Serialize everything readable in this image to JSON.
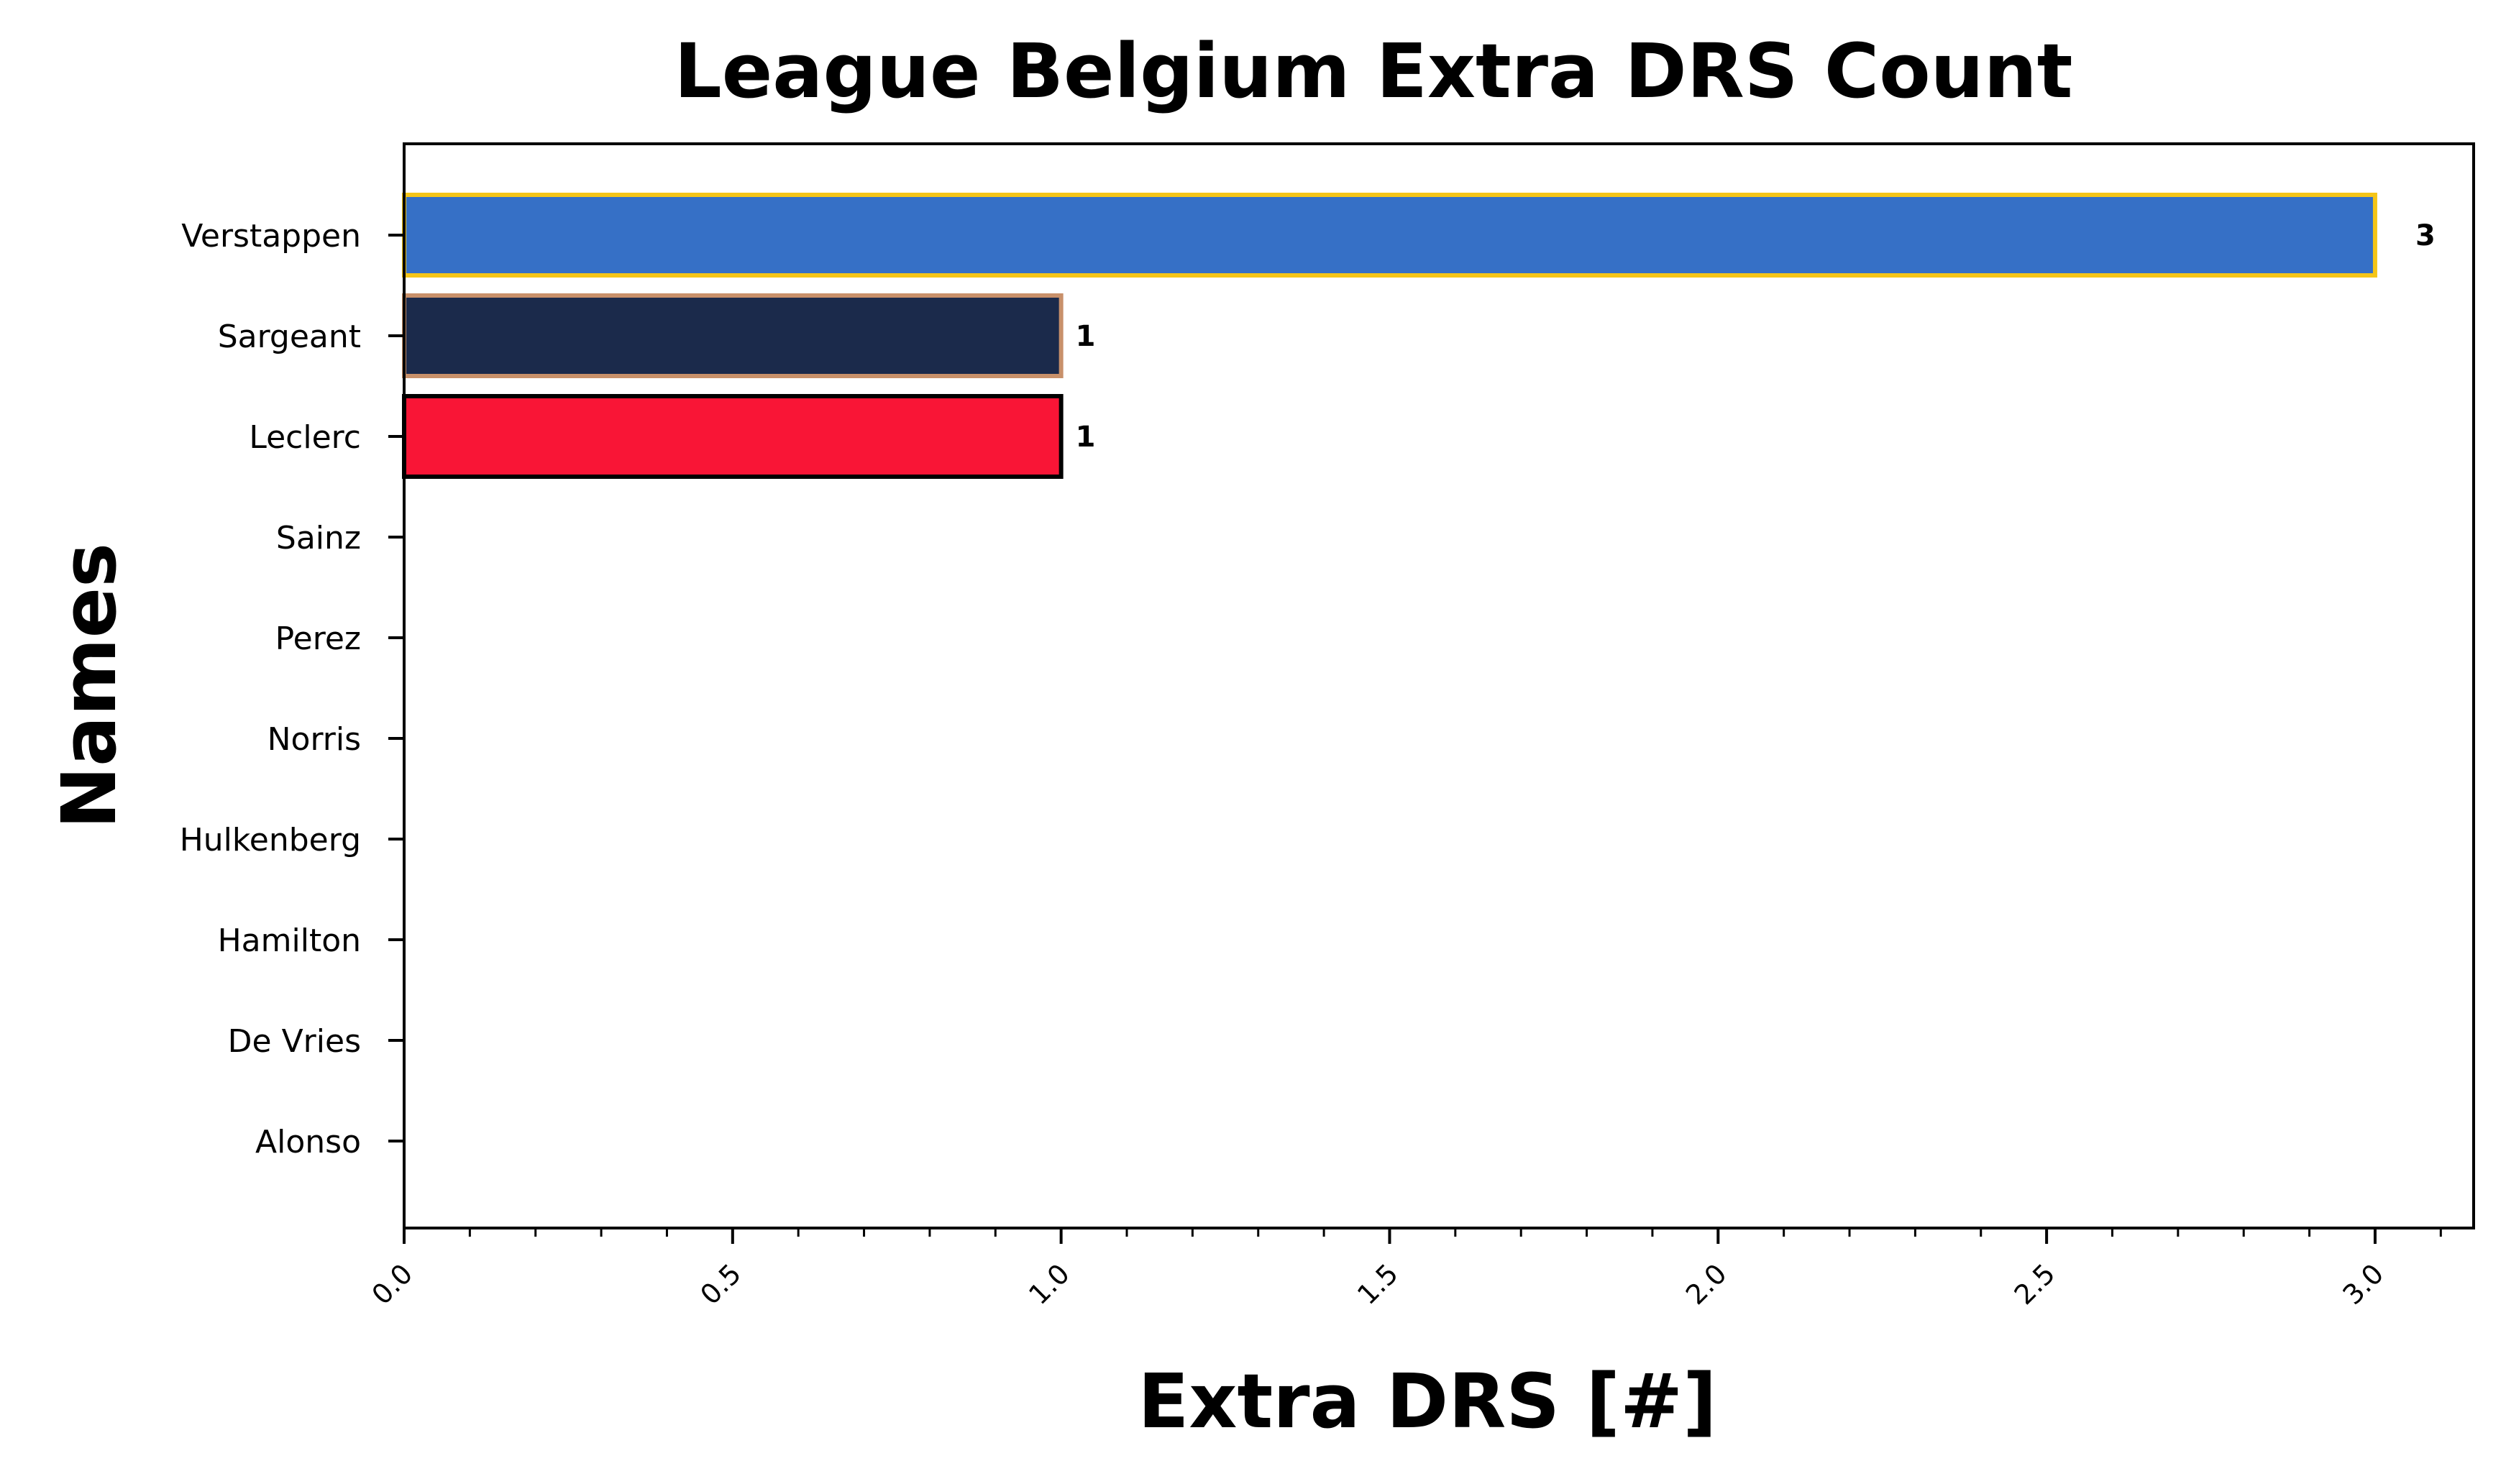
{
  "chart_data": {
    "type": "bar",
    "orientation": "horizontal",
    "title": "League Belgium Extra DRS Count",
    "xlabel": "Extra DRS [#]",
    "ylabel": "Names",
    "xlim": [
      0,
      3.15
    ],
    "xticks": [
      "0.0",
      "0.5",
      "1.0",
      "1.5",
      "2.0",
      "2.5",
      "3.0"
    ],
    "grid": false,
    "categories": [
      "Verstappen",
      "Sargeant",
      "Leclerc",
      "Sainz",
      "Perez",
      "Norris",
      "Hulkenberg",
      "Hamilton",
      "De Vries",
      "Alonso"
    ],
    "values": [
      3,
      1,
      1,
      0,
      0,
      0,
      0,
      0,
      0,
      0
    ],
    "data_labels": [
      "3",
      "1",
      "1",
      "",
      "",
      "",
      "",
      "",
      "",
      ""
    ],
    "bar_colors": [
      "#3670C6",
      "#1B2A4B",
      "#F91536",
      "#F91536",
      "#3670C6",
      "#F58020",
      "#B6BABD",
      "#6CD3BF",
      "#5E8FAA",
      "#358C75"
    ],
    "bar_edge_colors": [
      "#F5C518",
      "#C8906A",
      "#000000",
      "#000000",
      "#000000",
      "#000000",
      "#000000",
      "#000000",
      "#000000",
      "#000000"
    ]
  }
}
